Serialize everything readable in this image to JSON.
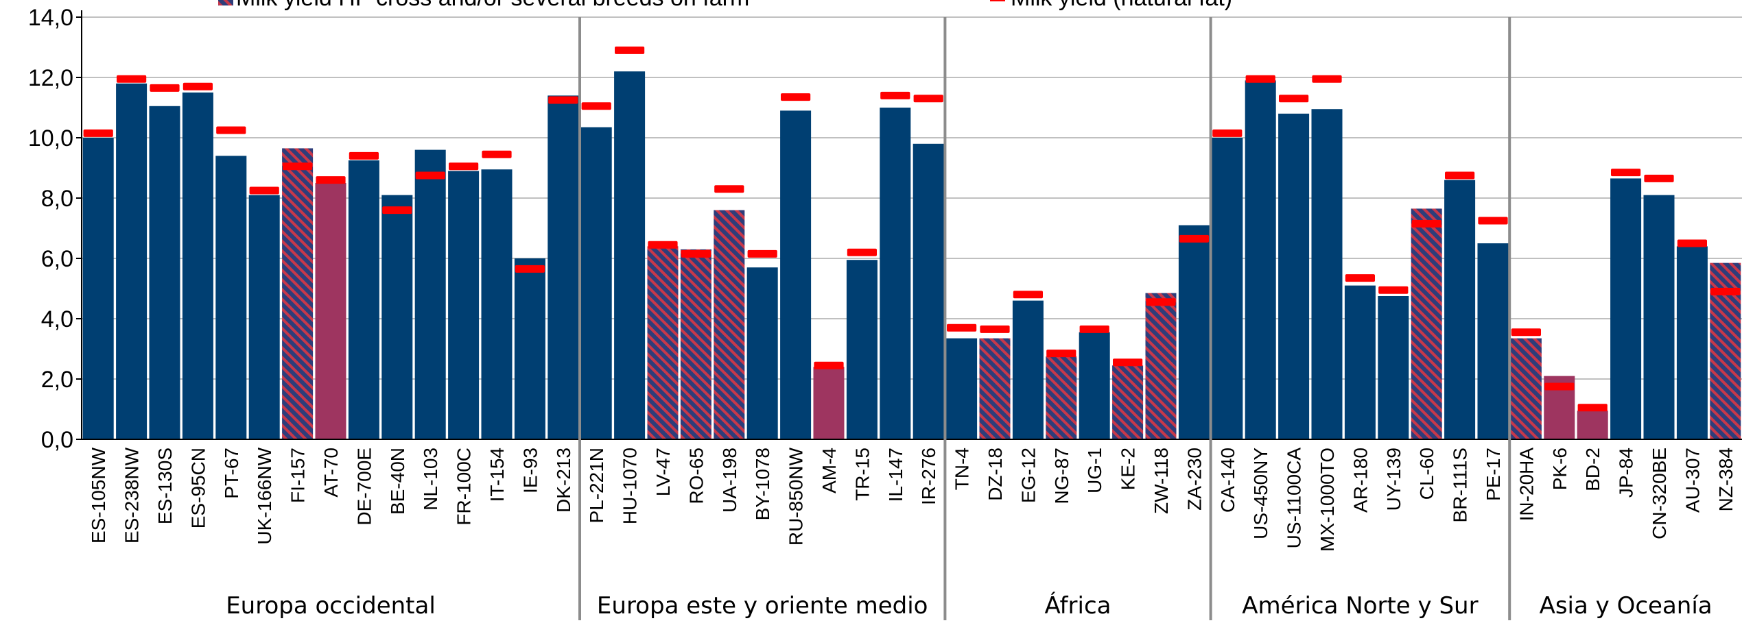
{
  "chart_data": {
    "type": "bar",
    "ylim": [
      0,
      14
    ],
    "yticks": [
      "0,0",
      "2,0",
      "4,0",
      "6,0",
      "8,0",
      "10,0",
      "12,0",
      "14,0"
    ],
    "grid": true,
    "legend": [
      {
        "label": "Milk yield HF cross and/or several breeds on farm",
        "marker": "hatched"
      },
      {
        "label": "Milk yield (natural fat)",
        "marker": "red-dash"
      }
    ],
    "colors": {
      "hf": "#003f72",
      "cross": "#2e3d7a",
      "cross_hatch": "#c8384a",
      "local": "#9e3560",
      "marker": "#ff0000",
      "grid": "#808080",
      "separator": "#8c8c8c"
    },
    "categories": [
      "ES-105NW",
      "ES-238NW",
      "ES-130S",
      "ES-95CN",
      "PT-67",
      "UK-166NW",
      "FI-157",
      "AT-70",
      "DE-700E",
      "BE-40N",
      "NL-103",
      "FR-100C",
      "IT-154",
      "IE-93",
      "DK-213",
      "PL-221N",
      "HU-1070",
      "LV-47",
      "RO-65",
      "UA-198",
      "BY-1078",
      "RU-850NW",
      "AM-4",
      "TR-15",
      "IL-147",
      "IR-276",
      "TN-4",
      "DZ-18",
      "EG-12",
      "NG-87",
      "UG-1",
      "KE-2",
      "ZW-118",
      "ZA-230",
      "CA-140",
      "US-450NY",
      "US-1100CA",
      "MX-1000TO",
      "AR-180",
      "UY-139",
      "CL-60",
      "BR-111S",
      "PE-17",
      "IN-20HA",
      "PK-6",
      "BD-2",
      "JP-84",
      "CN-320BE",
      "AU-307",
      "NZ-384"
    ],
    "bar_values": [
      10.0,
      11.8,
      11.05,
      11.5,
      9.4,
      8.1,
      9.65,
      8.5,
      9.25,
      8.1,
      9.6,
      8.9,
      8.95,
      6.0,
      11.4,
      10.35,
      12.2,
      6.4,
      6.3,
      7.6,
      5.7,
      10.9,
      2.4,
      5.95,
      11.0,
      9.8,
      3.35,
      3.35,
      4.6,
      2.75,
      3.55,
      2.45,
      4.85,
      7.1,
      10.0,
      11.9,
      10.8,
      10.95,
      5.1,
      4.75,
      7.65,
      8.6,
      6.5,
      3.35,
      2.1,
      0.95,
      8.65,
      8.1,
      6.4,
      5.85
    ],
    "bar_types": [
      "hf",
      "hf",
      "hf",
      "hf",
      "hf",
      "hf",
      "cross",
      "local",
      "hf",
      "hf",
      "hf",
      "hf",
      "hf",
      "hf",
      "hf",
      "hf",
      "hf",
      "cross",
      "cross",
      "cross",
      "hf",
      "hf",
      "local",
      "hf",
      "hf",
      "hf",
      "hf",
      "cross",
      "hf",
      "cross",
      "hf",
      "cross",
      "cross",
      "hf",
      "hf",
      "hf",
      "hf",
      "hf",
      "hf",
      "hf",
      "cross",
      "hf",
      "hf",
      "cross",
      "local",
      "local",
      "hf",
      "hf",
      "hf",
      "cross"
    ],
    "marker_values": [
      10.15,
      11.95,
      11.65,
      11.7,
      10.25,
      8.25,
      9.05,
      8.6,
      9.4,
      7.6,
      8.75,
      9.05,
      9.45,
      5.65,
      11.25,
      11.05,
      12.9,
      6.45,
      6.15,
      8.3,
      6.15,
      11.35,
      2.45,
      6.2,
      11.4,
      11.3,
      3.7,
      3.65,
      4.8,
      2.85,
      3.65,
      2.55,
      4.55,
      6.65,
      10.15,
      11.95,
      11.3,
      11.95,
      5.35,
      4.95,
      7.15,
      8.75,
      7.25,
      3.55,
      1.75,
      1.05,
      8.85,
      8.65,
      6.5,
      4.9
    ],
    "regions": [
      {
        "name": "Europa occidental",
        "count": 15
      },
      {
        "name": "Europa este y oriente medio",
        "count": 11
      },
      {
        "name": "África",
        "count": 8
      },
      {
        "name": "América Norte y Sur",
        "count": 9
      },
      {
        "name": "Asia y Oceanía",
        "count": 7
      }
    ]
  }
}
